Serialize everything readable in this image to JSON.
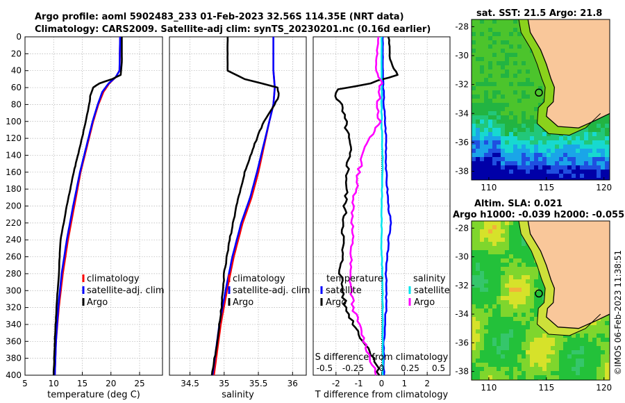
{
  "titles": {
    "line1": "Argo profile: aoml 5902483_233 01-Feb-2023 32.56S 114.35E (NRT data)",
    "line2": "Climatology: CARS2009. Satellite-adj clim: synTS_20230201.nc (0.16d earlier)",
    "sst": "sat. SST: 21.5 Argo: 21.8",
    "sla1": "Altim. SLA: 0.021",
    "sla2": "Argo h1000: -0.039 h2000: -0.055",
    "watermark": "©IMOS 06-Feb-2023 11:38:51"
  },
  "colors": {
    "climatology": "#ff0000",
    "satellite": "#0000ff",
    "argo": "#000000",
    "sal_satellite": "#00e5ee",
    "sal_argo": "#ff00ff",
    "land": "#f9c79a",
    "grid": "#b0b0b0"
  },
  "chart_data": [
    {
      "type": "line",
      "name": "temperature",
      "xlabel": "temperature (deg C)",
      "xlim": [
        5,
        29
      ],
      "xticks": [
        5,
        10,
        15,
        20,
        25
      ],
      "ylim": [
        0,
        400
      ],
      "yticks": [
        0,
        20,
        40,
        60,
        80,
        100,
        120,
        140,
        160,
        180,
        200,
        220,
        240,
        260,
        280,
        300,
        320,
        340,
        360,
        380,
        400
      ],
      "legend": [
        "climatology",
        "satellite-adj. clim",
        "Argo"
      ],
      "series": [
        {
          "name": "climatology",
          "depth": [
            0,
            40,
            48,
            55,
            65,
            80,
            100,
            130,
            160,
            200,
            240,
            280,
            320,
            360,
            400
          ],
          "values": [
            21.6,
            21.5,
            20.8,
            19.7,
            18.7,
            17.8,
            16.9,
            15.8,
            14.7,
            13.6,
            12.5,
            11.6,
            10.9,
            10.4,
            10.2
          ]
        },
        {
          "name": "satellite-adj. clim",
          "depth": [
            0,
            40,
            48,
            55,
            65,
            80,
            100,
            130,
            160,
            200,
            240,
            280,
            320,
            360,
            400
          ],
          "values": [
            21.6,
            21.5,
            20.8,
            19.6,
            18.5,
            17.7,
            16.8,
            15.7,
            14.6,
            13.4,
            12.3,
            11.4,
            10.8,
            10.4,
            10.2
          ]
        },
        {
          "name": "Argo",
          "depth": [
            0,
            30,
            45,
            50,
            55,
            60,
            70,
            80,
            100,
            130,
            160,
            200,
            240,
            280,
            320,
            360,
            400
          ],
          "values": [
            21.9,
            21.9,
            21.7,
            20.2,
            18.0,
            16.9,
            16.4,
            16.2,
            15.6,
            14.6,
            13.5,
            12.3,
            11.2,
            10.9,
            10.5,
            10.2,
            10.0
          ]
        }
      ]
    },
    {
      "type": "line",
      "name": "salinity",
      "xlabel": "salinity",
      "xlim": [
        34.2,
        36.2
      ],
      "xticks": [
        34.5,
        35,
        35.5,
        36
      ],
      "ylim": [
        0,
        400
      ],
      "legend": [
        "climatology",
        "satellite-adj. clim",
        "Argo"
      ],
      "series": [
        {
          "name": "climatology",
          "depth": [
            0,
            40,
            60,
            80,
            100,
            130,
            160,
            190,
            220,
            260,
            300,
            340,
            400
          ],
          "values": [
            35.72,
            35.72,
            35.74,
            35.72,
            35.66,
            35.58,
            35.5,
            35.4,
            35.27,
            35.14,
            35.04,
            34.95,
            34.85
          ]
        },
        {
          "name": "satellite-adj. clim",
          "depth": [
            0,
            40,
            60,
            80,
            100,
            130,
            160,
            190,
            220,
            260,
            300,
            340,
            400
          ],
          "values": [
            35.72,
            35.72,
            35.74,
            35.72,
            35.66,
            35.57,
            35.48,
            35.38,
            35.25,
            35.12,
            35.02,
            34.93,
            34.83
          ]
        },
        {
          "name": "Argo",
          "depth": [
            0,
            20,
            40,
            50,
            55,
            60,
            70,
            80,
            100,
            130,
            160,
            200,
            240,
            280,
            320,
            360,
            400
          ],
          "values": [
            35.05,
            35.05,
            35.05,
            35.3,
            35.55,
            35.78,
            35.8,
            35.74,
            35.58,
            35.43,
            35.3,
            35.18,
            35.08,
            35.0,
            34.96,
            34.9,
            34.82
          ]
        }
      ]
    },
    {
      "type": "line",
      "name": "differences",
      "xlabel": "T difference from climatology",
      "xlabel_top": "S difference from climatology",
      "xlim": [
        -3,
        3
      ],
      "xticks": [
        -2,
        -1,
        0,
        1,
        2
      ],
      "s_xlim": [
        -0.6,
        0.6
      ],
      "s_xticks": [
        -0.5,
        -0.25,
        0,
        0.25,
        0.5
      ],
      "s_xticklabels": [
        "-0.5",
        "-0.25",
        "0",
        "0.25",
        "0.5"
      ],
      "ylim": [
        0,
        400
      ],
      "legend_headers": [
        "temperature",
        "salinity"
      ],
      "legend": [
        "satellite",
        "Argo",
        "satellite",
        "Argo"
      ],
      "series": [
        {
          "name": "T satellite",
          "depth": [
            0,
            40,
            80,
            120,
            160,
            200,
            220,
            240,
            280,
            320,
            360,
            400
          ],
          "values": [
            0.05,
            0.05,
            0.1,
            0.2,
            0.2,
            0.3,
            0.4,
            0.3,
            0.2,
            0.2,
            0.1,
            0.1
          ]
        },
        {
          "name": "T Argo",
          "depth": [
            0,
            30,
            45,
            55,
            62,
            70,
            80,
            100,
            130,
            160,
            200,
            240,
            280,
            320,
            360,
            380,
            400
          ],
          "values": [
            0.3,
            0.4,
            0.7,
            -0.5,
            -1.9,
            -2.0,
            -1.8,
            -1.6,
            -1.4,
            -1.5,
            -1.6,
            -1.7,
            -1.8,
            -1.6,
            -0.8,
            -0.3,
            -0.1
          ]
        },
        {
          "name": "S satellite",
          "depth": [
            0,
            50,
            100,
            150,
            200,
            250,
            300,
            350,
            400
          ],
          "values": [
            0.0,
            0.0,
            0.0,
            0.01,
            0.0,
            0.0,
            0.01,
            0.01,
            0.01
          ]
        },
        {
          "name": "S Argo",
          "depth": [
            0,
            40,
            55,
            65,
            80,
            100,
            130,
            160,
            200,
            240,
            280,
            320,
            360,
            400
          ],
          "values": [
            -0.03,
            -0.05,
            0.0,
            -0.02,
            -0.03,
            -0.02,
            -0.15,
            -0.2,
            -0.25,
            -0.26,
            -0.28,
            -0.25,
            -0.15,
            -0.05
          ]
        }
      ]
    }
  ],
  "maps": {
    "lon_ticks": [
      110,
      115,
      120
    ],
    "lat_ticks": [
      -28,
      -30,
      -32,
      -34,
      -36,
      -38
    ],
    "xlim": [
      108.5,
      120.5
    ],
    "ylim": [
      -38.6,
      -27.5
    ],
    "argo_lon": 114.35,
    "argo_lat": -32.56
  }
}
